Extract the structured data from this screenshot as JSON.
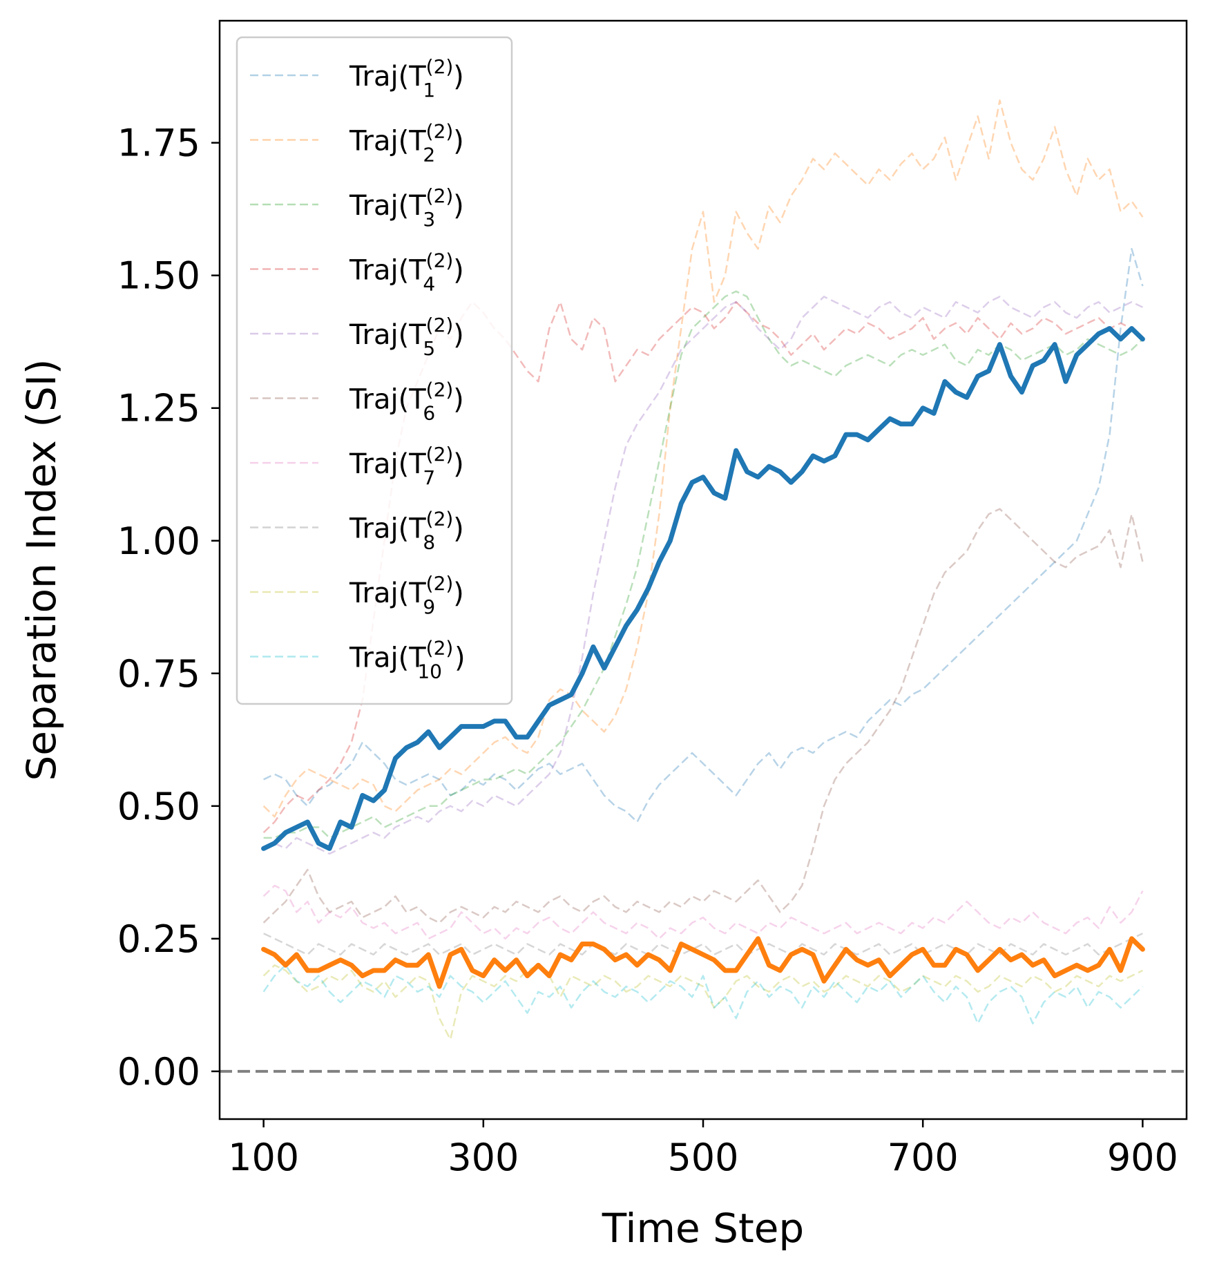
{
  "chart_data": {
    "type": "line",
    "xlabel": "Time Step",
    "ylabel": "Separation Index (SI)",
    "xlim": [
      60,
      940
    ],
    "ylim": [
      -0.09,
      1.98
    ],
    "xticks": [
      100,
      300,
      500,
      700,
      900
    ],
    "yticks": [
      0.0,
      0.25,
      0.5,
      0.75,
      1.0,
      1.25,
      1.5,
      1.75
    ],
    "ytick_labels": [
      "0.00",
      "0.25",
      "0.50",
      "0.75",
      "1.00",
      "1.25",
      "1.50",
      "1.75"
    ],
    "grid": false,
    "legend_position": "upper-left",
    "reference_line": {
      "y": 0.0,
      "style": "dashed",
      "color": "#808080"
    },
    "x": [
      100,
      110,
      120,
      130,
      140,
      150,
      160,
      170,
      180,
      190,
      200,
      210,
      220,
      230,
      240,
      250,
      260,
      270,
      280,
      290,
      300,
      310,
      320,
      330,
      340,
      350,
      360,
      370,
      380,
      390,
      400,
      410,
      420,
      430,
      440,
      450,
      460,
      470,
      480,
      490,
      500,
      510,
      520,
      530,
      540,
      550,
      560,
      570,
      580,
      590,
      600,
      610,
      620,
      630,
      640,
      650,
      660,
      670,
      680,
      690,
      700,
      710,
      720,
      730,
      740,
      750,
      760,
      770,
      780,
      790,
      800,
      810,
      820,
      830,
      840,
      850,
      860,
      870,
      880,
      890,
      900
    ],
    "series": [
      {
        "legend": "Traj(T",
        "sup": "(2)",
        "sub": "1",
        "color": "#1f77b4",
        "style": "dashed",
        "values": [
          0.55,
          0.56,
          0.55,
          0.52,
          0.5,
          0.53,
          0.54,
          0.56,
          0.58,
          0.62,
          0.6,
          0.58,
          0.55,
          0.54,
          0.55,
          0.56,
          0.55,
          0.52,
          0.53,
          0.55,
          0.54,
          0.56,
          0.55,
          0.53,
          0.55,
          0.57,
          0.58,
          0.56,
          0.57,
          0.58,
          0.55,
          0.52,
          0.5,
          0.49,
          0.47,
          0.51,
          0.54,
          0.56,
          0.58,
          0.6,
          0.58,
          0.56,
          0.54,
          0.52,
          0.55,
          0.58,
          0.6,
          0.57,
          0.6,
          0.61,
          0.6,
          0.62,
          0.63,
          0.64,
          0.63,
          0.66,
          0.68,
          0.7,
          0.69,
          0.71,
          0.72,
          0.74,
          0.76,
          0.78,
          0.8,
          0.82,
          0.84,
          0.86,
          0.88,
          0.9,
          0.92,
          0.94,
          0.96,
          0.98,
          1.0,
          1.05,
          1.1,
          1.2,
          1.4,
          1.55,
          1.48
        ]
      },
      {
        "legend": "Traj(T",
        "sup": "(2)",
        "sub": "2",
        "color": "#ff7f0e",
        "style": "dashed",
        "values": [
          0.5,
          0.48,
          0.52,
          0.55,
          0.57,
          0.56,
          0.55,
          0.54,
          0.53,
          0.55,
          0.54,
          0.5,
          0.49,
          0.51,
          0.53,
          0.54,
          0.55,
          0.57,
          0.56,
          0.58,
          0.6,
          0.62,
          0.63,
          0.61,
          0.6,
          0.63,
          0.7,
          0.72,
          0.71,
          0.68,
          0.66,
          0.64,
          0.67,
          0.72,
          0.8,
          0.9,
          1.05,
          1.25,
          1.4,
          1.55,
          1.62,
          1.45,
          1.5,
          1.62,
          1.58,
          1.55,
          1.63,
          1.6,
          1.65,
          1.68,
          1.72,
          1.7,
          1.73,
          1.71,
          1.69,
          1.67,
          1.7,
          1.68,
          1.71,
          1.73,
          1.7,
          1.72,
          1.76,
          1.68,
          1.74,
          1.8,
          1.72,
          1.83,
          1.75,
          1.7,
          1.68,
          1.72,
          1.78,
          1.7,
          1.65,
          1.72,
          1.68,
          1.7,
          1.62,
          1.64,
          1.61
        ]
      },
      {
        "legend": "Traj(T",
        "sup": "(2)",
        "sub": "3",
        "color": "#2ca02c",
        "style": "dashed",
        "values": [
          0.44,
          0.44,
          0.45,
          0.45,
          0.46,
          0.46,
          0.44,
          0.45,
          0.46,
          0.47,
          0.48,
          0.46,
          0.47,
          0.48,
          0.49,
          0.5,
          0.5,
          0.52,
          0.53,
          0.54,
          0.55,
          0.55,
          0.56,
          0.57,
          0.56,
          0.58,
          0.6,
          0.62,
          0.65,
          0.68,
          0.72,
          0.76,
          0.82,
          0.88,
          0.95,
          1.05,
          1.15,
          1.25,
          1.35,
          1.4,
          1.42,
          1.44,
          1.46,
          1.47,
          1.46,
          1.42,
          1.38,
          1.35,
          1.33,
          1.34,
          1.33,
          1.32,
          1.31,
          1.33,
          1.34,
          1.35,
          1.34,
          1.33,
          1.35,
          1.36,
          1.35,
          1.36,
          1.37,
          1.34,
          1.33,
          1.36,
          1.35,
          1.37,
          1.36,
          1.34,
          1.35,
          1.36,
          1.37,
          1.35,
          1.36,
          1.38,
          1.37,
          1.36,
          1.35,
          1.36,
          1.38
        ]
      },
      {
        "legend": "Traj(T",
        "sup": "(2)",
        "sub": "4",
        "color": "#d62728",
        "style": "dashed",
        "values": [
          0.45,
          0.47,
          0.5,
          0.52,
          0.51,
          0.53,
          0.55,
          0.58,
          0.62,
          0.7,
          0.85,
          1.0,
          1.15,
          1.25,
          1.3,
          1.35,
          1.4,
          1.38,
          1.42,
          1.45,
          1.43,
          1.4,
          1.38,
          1.35,
          1.32,
          1.3,
          1.4,
          1.45,
          1.38,
          1.36,
          1.42,
          1.4,
          1.3,
          1.33,
          1.36,
          1.35,
          1.38,
          1.4,
          1.42,
          1.44,
          1.43,
          1.4,
          1.42,
          1.45,
          1.43,
          1.41,
          1.4,
          1.38,
          1.35,
          1.37,
          1.39,
          1.36,
          1.38,
          1.4,
          1.39,
          1.41,
          1.4,
          1.38,
          1.39,
          1.4,
          1.42,
          1.38,
          1.4,
          1.41,
          1.39,
          1.42,
          1.4,
          1.38,
          1.41,
          1.39,
          1.4,
          1.42,
          1.41,
          1.39,
          1.4,
          1.41,
          1.42,
          1.4,
          1.41,
          1.4,
          1.38
        ]
      },
      {
        "legend": "Traj(T",
        "sup": "(2)",
        "sub": "5",
        "color": "#9467bd",
        "style": "dashed",
        "values": [
          0.42,
          0.43,
          0.42,
          0.44,
          0.43,
          0.42,
          0.41,
          0.42,
          0.43,
          0.44,
          0.45,
          0.44,
          0.46,
          0.47,
          0.48,
          0.47,
          0.49,
          0.5,
          0.49,
          0.51,
          0.5,
          0.52,
          0.51,
          0.5,
          0.52,
          0.54,
          0.56,
          0.6,
          0.68,
          0.78,
          0.9,
          1.0,
          1.1,
          1.18,
          1.22,
          1.25,
          1.28,
          1.32,
          1.36,
          1.38,
          1.4,
          1.42,
          1.44,
          1.45,
          1.43,
          1.4,
          1.38,
          1.36,
          1.38,
          1.42,
          1.44,
          1.46,
          1.45,
          1.44,
          1.43,
          1.42,
          1.44,
          1.45,
          1.43,
          1.42,
          1.44,
          1.43,
          1.42,
          1.45,
          1.44,
          1.43,
          1.45,
          1.46,
          1.44,
          1.43,
          1.42,
          1.44,
          1.45,
          1.43,
          1.42,
          1.44,
          1.45,
          1.43,
          1.44,
          1.45,
          1.44
        ]
      },
      {
        "legend": "Traj(T",
        "sup": "(2)",
        "sub": "6",
        "color": "#8c564b",
        "style": "dashed",
        "values": [
          0.28,
          0.3,
          0.32,
          0.35,
          0.38,
          0.33,
          0.3,
          0.31,
          0.32,
          0.29,
          0.3,
          0.31,
          0.33,
          0.3,
          0.31,
          0.29,
          0.28,
          0.3,
          0.31,
          0.3,
          0.29,
          0.31,
          0.3,
          0.32,
          0.31,
          0.3,
          0.32,
          0.33,
          0.31,
          0.3,
          0.32,
          0.33,
          0.31,
          0.3,
          0.32,
          0.31,
          0.3,
          0.32,
          0.31,
          0.33,
          0.32,
          0.34,
          0.33,
          0.32,
          0.34,
          0.36,
          0.33,
          0.3,
          0.32,
          0.35,
          0.42,
          0.5,
          0.55,
          0.58,
          0.6,
          0.62,
          0.65,
          0.68,
          0.72,
          0.78,
          0.84,
          0.9,
          0.94,
          0.96,
          0.98,
          1.02,
          1.05,
          1.06,
          1.04,
          1.02,
          1.0,
          0.98,
          0.96,
          0.95,
          0.97,
          0.98,
          0.99,
          1.02,
          0.95,
          1.05,
          0.96
        ]
      },
      {
        "legend": "Traj(T",
        "sup": "(2)",
        "sub": "7",
        "color": "#e377c2",
        "style": "dashed",
        "values": [
          0.33,
          0.35,
          0.34,
          0.3,
          0.32,
          0.28,
          0.3,
          0.29,
          0.31,
          0.28,
          0.27,
          0.28,
          0.26,
          0.27,
          0.28,
          0.25,
          0.26,
          0.27,
          0.3,
          0.28,
          0.26,
          0.27,
          0.25,
          0.27,
          0.26,
          0.28,
          0.29,
          0.27,
          0.26,
          0.28,
          0.3,
          0.28,
          0.27,
          0.26,
          0.28,
          0.27,
          0.25,
          0.27,
          0.26,
          0.28,
          0.29,
          0.27,
          0.26,
          0.28,
          0.27,
          0.26,
          0.28,
          0.27,
          0.29,
          0.28,
          0.27,
          0.26,
          0.27,
          0.28,
          0.26,
          0.27,
          0.28,
          0.27,
          0.26,
          0.28,
          0.27,
          0.29,
          0.28,
          0.3,
          0.32,
          0.3,
          0.28,
          0.27,
          0.29,
          0.28,
          0.3,
          0.28,
          0.27,
          0.26,
          0.28,
          0.29,
          0.27,
          0.31,
          0.28,
          0.3,
          0.34
        ]
      },
      {
        "legend": "Traj(T",
        "sup": "(2)",
        "sub": "8",
        "color": "#7f7f7f",
        "style": "dashed",
        "values": [
          0.26,
          0.25,
          0.24,
          0.23,
          0.22,
          0.24,
          0.23,
          0.22,
          0.24,
          0.23,
          0.22,
          0.24,
          0.23,
          0.22,
          0.23,
          0.24,
          0.22,
          0.23,
          0.24,
          0.22,
          0.23,
          0.24,
          0.23,
          0.22,
          0.24,
          0.23,
          0.22,
          0.24,
          0.23,
          0.22,
          0.24,
          0.23,
          0.22,
          0.24,
          0.23,
          0.22,
          0.24,
          0.23,
          0.22,
          0.23,
          0.24,
          0.22,
          0.23,
          0.24,
          0.22,
          0.23,
          0.24,
          0.23,
          0.22,
          0.24,
          0.23,
          0.22,
          0.24,
          0.23,
          0.22,
          0.23,
          0.24,
          0.22,
          0.23,
          0.24,
          0.22,
          0.23,
          0.24,
          0.23,
          0.22,
          0.24,
          0.23,
          0.22,
          0.24,
          0.23,
          0.22,
          0.24,
          0.23,
          0.22,
          0.23,
          0.24,
          0.22,
          0.23,
          0.24,
          0.25,
          0.26
        ]
      },
      {
        "legend": "Traj(T",
        "sup": "(2)",
        "sub": "9",
        "color": "#bcbd22",
        "style": "dashed",
        "values": [
          0.18,
          0.2,
          0.19,
          0.17,
          0.15,
          0.16,
          0.18,
          0.17,
          0.19,
          0.16,
          0.15,
          0.17,
          0.14,
          0.16,
          0.18,
          0.17,
          0.1,
          0.06,
          0.15,
          0.18,
          0.17,
          0.16,
          0.18,
          0.17,
          0.19,
          0.2,
          0.18,
          0.14,
          0.18,
          0.17,
          0.16,
          0.18,
          0.17,
          0.15,
          0.16,
          0.18,
          0.17,
          0.16,
          0.18,
          0.17,
          0.16,
          0.12,
          0.14,
          0.17,
          0.18,
          0.16,
          0.15,
          0.17,
          0.18,
          0.16,
          0.17,
          0.15,
          0.16,
          0.18,
          0.17,
          0.16,
          0.18,
          0.17,
          0.15,
          0.16,
          0.18,
          0.17,
          0.16,
          0.18,
          0.17,
          0.15,
          0.16,
          0.18,
          0.17,
          0.16,
          0.18,
          0.17,
          0.15,
          0.16,
          0.18,
          0.17,
          0.16,
          0.18,
          0.17,
          0.18,
          0.19
        ]
      },
      {
        "legend": "Traj(T",
        "sup": "(2)",
        "sub": "10",
        "color": "#17becf",
        "style": "dashed",
        "values": [
          0.15,
          0.18,
          0.2,
          0.17,
          0.16,
          0.18,
          0.15,
          0.13,
          0.15,
          0.17,
          0.16,
          0.14,
          0.18,
          0.17,
          0.15,
          0.16,
          0.14,
          0.18,
          0.16,
          0.15,
          0.13,
          0.15,
          0.17,
          0.14,
          0.11,
          0.15,
          0.14,
          0.16,
          0.12,
          0.15,
          0.17,
          0.15,
          0.14,
          0.16,
          0.15,
          0.13,
          0.15,
          0.17,
          0.16,
          0.14,
          0.18,
          0.12,
          0.14,
          0.1,
          0.15,
          0.17,
          0.14,
          0.16,
          0.15,
          0.12,
          0.16,
          0.14,
          0.17,
          0.15,
          0.13,
          0.16,
          0.15,
          0.17,
          0.14,
          0.16,
          0.18,
          0.15,
          0.13,
          0.16,
          0.14,
          0.09,
          0.13,
          0.15,
          0.16,
          0.14,
          0.09,
          0.13,
          0.15,
          0.14,
          0.16,
          0.12,
          0.15,
          0.14,
          0.12,
          0.14,
          0.16
        ]
      },
      {
        "color": "#1f77b4",
        "style": "solid-bold",
        "values": [
          0.42,
          0.43,
          0.45,
          0.46,
          0.47,
          0.43,
          0.42,
          0.47,
          0.46,
          0.52,
          0.51,
          0.53,
          0.59,
          0.61,
          0.62,
          0.64,
          0.61,
          0.63,
          0.65,
          0.65,
          0.65,
          0.66,
          0.66,
          0.63,
          0.63,
          0.66,
          0.69,
          0.7,
          0.71,
          0.75,
          0.8,
          0.76,
          0.8,
          0.84,
          0.87,
          0.91,
          0.96,
          1.0,
          1.07,
          1.11,
          1.12,
          1.09,
          1.08,
          1.17,
          1.13,
          1.12,
          1.14,
          1.13,
          1.11,
          1.13,
          1.16,
          1.15,
          1.16,
          1.2,
          1.2,
          1.19,
          1.21,
          1.23,
          1.22,
          1.22,
          1.25,
          1.24,
          1.3,
          1.28,
          1.27,
          1.31,
          1.32,
          1.37,
          1.31,
          1.28,
          1.33,
          1.34,
          1.37,
          1.3,
          1.35,
          1.37,
          1.39,
          1.4,
          1.38,
          1.4,
          1.38
        ]
      },
      {
        "color": "#ff7f0e",
        "style": "solid-bold",
        "values": [
          0.23,
          0.22,
          0.2,
          0.22,
          0.19,
          0.19,
          0.2,
          0.21,
          0.2,
          0.18,
          0.19,
          0.19,
          0.21,
          0.2,
          0.2,
          0.22,
          0.16,
          0.22,
          0.23,
          0.19,
          0.18,
          0.21,
          0.19,
          0.21,
          0.18,
          0.2,
          0.18,
          0.22,
          0.21,
          0.24,
          0.24,
          0.23,
          0.21,
          0.22,
          0.2,
          0.22,
          0.21,
          0.19,
          0.24,
          0.23,
          0.22,
          0.21,
          0.19,
          0.19,
          0.22,
          0.25,
          0.2,
          0.19,
          0.22,
          0.23,
          0.22,
          0.17,
          0.2,
          0.23,
          0.21,
          0.2,
          0.21,
          0.18,
          0.2,
          0.22,
          0.23,
          0.2,
          0.2,
          0.23,
          0.22,
          0.19,
          0.21,
          0.23,
          0.21,
          0.22,
          0.2,
          0.21,
          0.18,
          0.19,
          0.2,
          0.19,
          0.2,
          0.23,
          0.19,
          0.25,
          0.23
        ]
      }
    ]
  }
}
